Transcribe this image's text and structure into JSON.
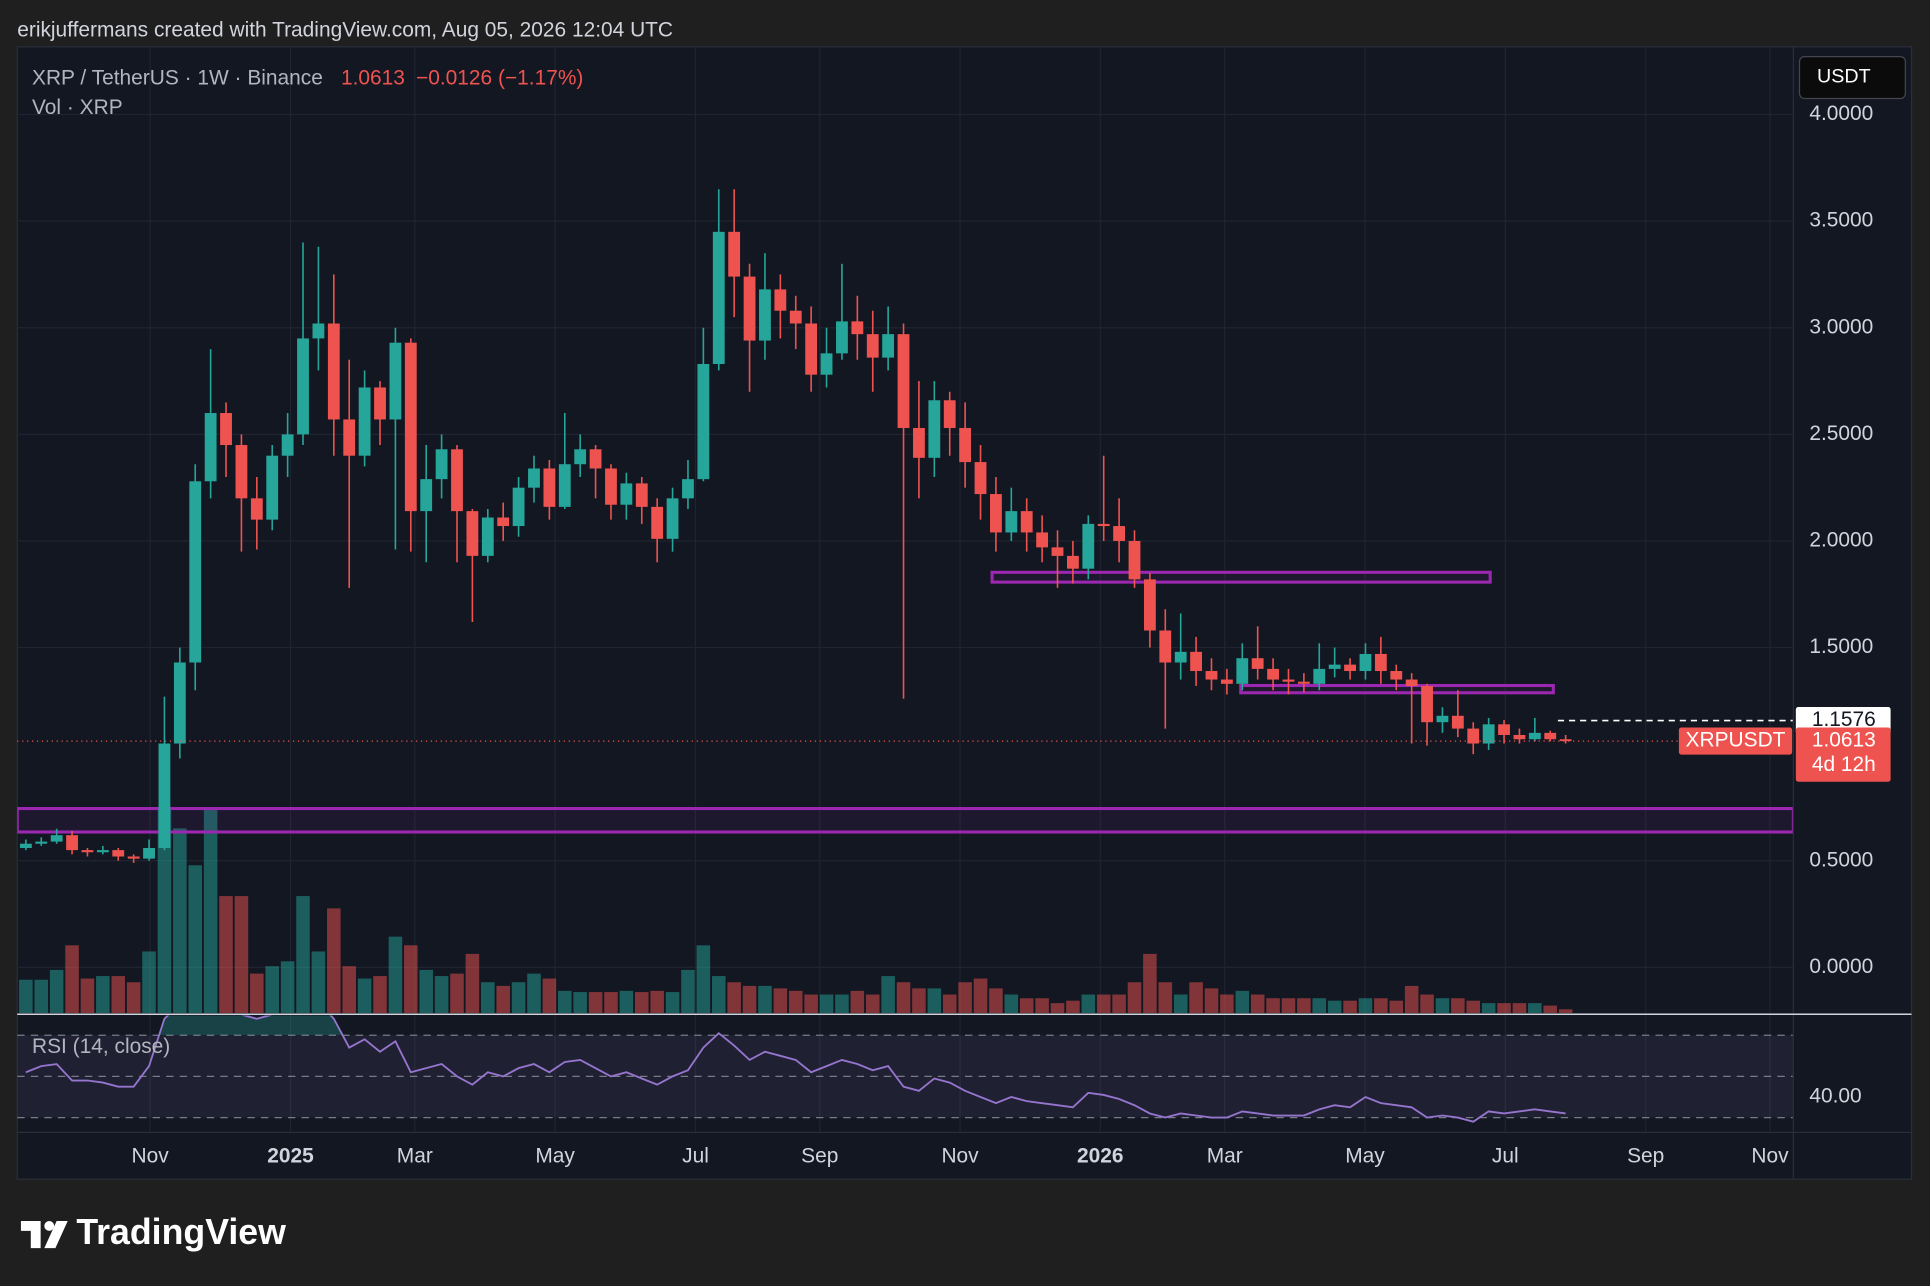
{
  "chart_data": {
    "type": "candlestick",
    "attribution": "erikjuffermans created with TradingView.com, Aug 05, 2026 12:04 UTC",
    "title": "XRP / TetherUS · 1W · Binance",
    "change_label": "−0.0126 (−1.17%)",
    "volume_label": "Vol · XRP",
    "currency": "USDT",
    "symbol": "XRPUSDT",
    "countdown": "4d 12h",
    "rsi_label": "RSI (14, close)",
    "brand": "TradingView",
    "up_color": "#26a69a",
    "down_color": "#ef5350",
    "zone_color": "#9c27b0",
    "rsi_color": "#9575cd",
    "xlim": [
      -0.56,
      114.79
    ],
    "xticks": [
      {
        "value": 8.07,
        "label": "Nov"
      },
      {
        "value": 17.19,
        "label": "2025"
      },
      {
        "value": 25.26,
        "label": "Mar"
      },
      {
        "value": 34.37,
        "label": "May"
      },
      {
        "value": 43.49,
        "label": "Jul"
      },
      {
        "value": 51.56,
        "label": "Sep"
      },
      {
        "value": 60.67,
        "label": "Nov"
      },
      {
        "value": 69.78,
        "label": "2026"
      },
      {
        "value": 77.86,
        "label": "Mar"
      },
      {
        "value": 86.97,
        "label": "May"
      },
      {
        "value": 96.08,
        "label": "Jul"
      },
      {
        "value": 105.2,
        "label": "Sep"
      },
      {
        "value": 113.27,
        "label": "Nov"
      }
    ],
    "ylim": [
      -0.214,
      4.318
    ],
    "yticks": [
      {
        "value": 0,
        "label": "0.0000"
      },
      {
        "value": 0.5,
        "label": "0.5000"
      },
      {
        "value": 1.5,
        "label": "1.5000"
      },
      {
        "value": 2,
        "label": "2.0000"
      },
      {
        "value": 2.5,
        "label": "2.5000"
      },
      {
        "value": 3,
        "label": "3.0000"
      },
      {
        "value": 3.5,
        "label": "3.5000"
      },
      {
        "value": 4,
        "label": "4.0000"
      }
    ],
    "grid": true,
    "open": [
      0.56,
      0.58,
      0.59,
      0.62,
      0.55,
      0.54,
      0.55,
      0.52,
      0.51,
      0.56,
      1.05,
      1.43,
      2.28,
      2.6,
      2.45,
      2.2,
      2.1,
      2.4,
      2.5,
      2.95,
      3.02,
      2.57,
      2.4,
      2.72,
      2.57,
      2.93,
      2.14,
      2.29,
      2.43,
      2.14,
      1.93,
      2.11,
      2.07,
      2.25,
      2.34,
      2.16,
      2.36,
      2.43,
      2.34,
      2.17,
      2.27,
      2.16,
      2.01,
      2.2,
      2.29,
      2.83,
      3.45,
      3.24,
      2.94,
      3.18,
      3.08,
      3.02,
      2.78,
      2.88,
      3.03,
      2.97,
      2.86,
      2.97,
      2.53,
      2.39,
      2.66,
      2.53,
      2.37,
      2.22,
      2.04,
      2.14,
      2.04,
      1.97,
      1.93,
      1.87,
      2.08,
      2.07,
      2.0,
      1.82,
      1.58,
      1.43,
      1.48,
      1.39,
      1.35,
      1.33,
      1.45,
      1.4,
      1.35,
      1.34,
      1.33,
      1.4,
      1.42,
      1.39,
      1.47,
      1.39,
      1.35,
      1.32,
      1.15,
      1.18,
      1.12,
      1.05,
      1.14,
      1.09,
      1.07,
      1.1,
      1.07
    ],
    "high": [
      0.6,
      0.61,
      0.65,
      0.64,
      0.56,
      0.57,
      0.56,
      0.53,
      0.6,
      1.27,
      1.5,
      2.36,
      2.9,
      2.65,
      2.5,
      2.3,
      2.45,
      2.6,
      3.4,
      3.38,
      3.25,
      2.85,
      2.8,
      2.75,
      3.0,
      2.95,
      2.45,
      2.5,
      2.45,
      2.15,
      2.15,
      2.18,
      2.3,
      2.4,
      2.38,
      2.6,
      2.5,
      2.45,
      2.36,
      2.32,
      2.3,
      2.2,
      2.25,
      2.38,
      3.0,
      3.65,
      3.65,
      3.3,
      3.35,
      3.25,
      3.15,
      3.1,
      3.0,
      3.3,
      3.15,
      3.08,
      3.1,
      3.02,
      2.75,
      2.75,
      2.7,
      2.65,
      2.45,
      2.3,
      2.25,
      2.2,
      2.12,
      2.05,
      2.0,
      2.12,
      2.4,
      2.2,
      2.05,
      1.85,
      1.68,
      1.66,
      1.55,
      1.45,
      1.4,
      1.52,
      1.6,
      1.45,
      1.4,
      1.38,
      1.52,
      1.5,
      1.45,
      1.52,
      1.55,
      1.42,
      1.38,
      1.33,
      1.22,
      1.3,
      1.15,
      1.17,
      1.16,
      1.12,
      1.17,
      1.11,
      1.09
    ],
    "low": [
      0.55,
      0.57,
      0.58,
      0.53,
      0.52,
      0.53,
      0.5,
      0.49,
      0.5,
      0.55,
      0.98,
      1.3,
      2.2,
      2.3,
      1.95,
      1.96,
      2.05,
      2.3,
      2.45,
      2.8,
      2.4,
      1.78,
      2.35,
      2.45,
      1.96,
      1.95,
      1.9,
      2.2,
      1.9,
      1.62,
      1.9,
      2.0,
      2.02,
      2.18,
      2.1,
      2.15,
      2.3,
      2.2,
      2.1,
      2.1,
      2.08,
      1.9,
      1.95,
      2.15,
      2.28,
      2.8,
      3.05,
      2.7,
      2.85,
      2.95,
      2.9,
      2.7,
      2.72,
      2.85,
      2.85,
      2.7,
      2.8,
      1.26,
      2.2,
      2.3,
      2.4,
      2.25,
      2.1,
      1.95,
      2.0,
      1.95,
      1.9,
      1.78,
      1.8,
      1.82,
      2.0,
      1.9,
      1.78,
      1.5,
      1.12,
      1.35,
      1.32,
      1.3,
      1.28,
      1.3,
      1.35,
      1.3,
      1.28,
      1.29,
      1.3,
      1.36,
      1.35,
      1.35,
      1.33,
      1.3,
      1.05,
      1.04,
      1.1,
      1.08,
      1.0,
      1.02,
      1.05,
      1.05,
      1.06,
      1.06,
      1.05
    ],
    "close": [
      0.58,
      0.59,
      0.62,
      0.55,
      0.54,
      0.55,
      0.52,
      0.51,
      0.56,
      1.05,
      1.43,
      2.28,
      2.6,
      2.45,
      2.2,
      2.1,
      2.4,
      2.5,
      2.95,
      3.02,
      2.57,
      2.4,
      2.72,
      2.57,
      2.93,
      2.14,
      2.29,
      2.43,
      2.14,
      1.93,
      2.11,
      2.07,
      2.25,
      2.34,
      2.16,
      2.36,
      2.43,
      2.34,
      2.17,
      2.27,
      2.16,
      2.01,
      2.2,
      2.29,
      2.83,
      3.45,
      3.24,
      2.94,
      3.18,
      3.08,
      3.02,
      2.78,
      2.88,
      3.03,
      2.97,
      2.86,
      2.97,
      2.53,
      2.39,
      2.66,
      2.53,
      2.37,
      2.22,
      2.04,
      2.14,
      2.04,
      1.97,
      1.93,
      1.87,
      2.08,
      2.07,
      2.0,
      1.82,
      1.58,
      1.43,
      1.48,
      1.39,
      1.35,
      1.33,
      1.45,
      1.4,
      1.35,
      1.34,
      1.33,
      1.4,
      1.42,
      1.39,
      1.47,
      1.39,
      1.35,
      1.32,
      1.15,
      1.18,
      1.12,
      1.05,
      1.14,
      1.09,
      1.07,
      1.1,
      1.07,
      1.0613
    ],
    "volume": [
      27,
      27,
      35,
      55,
      28,
      30,
      30,
      25,
      50,
      165,
      150,
      120,
      165,
      95,
      95,
      32,
      38,
      42,
      95,
      50,
      85,
      38,
      28,
      30,
      62,
      55,
      35,
      30,
      32,
      48,
      25,
      22,
      25,
      32,
      28,
      18,
      17,
      17,
      17,
      18,
      17,
      18,
      17,
      35,
      55,
      30,
      25,
      22,
      22,
      20,
      18,
      15,
      15,
      15,
      18,
      15,
      30,
      25,
      20,
      20,
      15,
      25,
      28,
      20,
      15,
      12,
      12,
      8,
      10,
      15,
      15,
      15,
      25,
      48,
      25,
      15,
      25,
      20,
      15,
      18,
      15,
      12,
      12,
      12,
      12,
      10,
      10,
      12,
      12,
      10,
      22,
      15,
      12,
      12,
      10,
      8,
      8,
      8,
      8,
      6,
      3
    ],
    "volume_lim": [
      0,
      240
    ],
    "rsi": [
      52,
      55,
      56,
      48,
      48,
      47,
      45,
      45,
      55,
      78,
      85,
      92,
      94,
      88,
      80,
      78,
      80,
      81,
      86,
      86,
      78,
      64,
      68,
      62,
      67,
      52,
      54,
      56,
      50,
      46,
      52,
      50,
      54,
      56,
      52,
      57,
      58,
      54,
      50,
      52,
      49,
      46,
      50,
      53,
      64,
      71,
      65,
      58,
      62,
      60,
      58,
      52,
      55,
      58,
      56,
      53,
      55,
      45,
      43,
      49,
      47,
      43,
      40,
      37,
      40,
      38,
      37,
      36,
      35,
      42,
      41,
      39,
      36,
      32,
      30,
      32,
      31,
      30,
      30,
      33,
      32,
      31,
      31,
      31,
      34,
      36,
      35,
      40,
      37,
      36,
      35,
      30,
      31,
      30,
      28,
      33,
      32,
      33,
      34,
      33,
      32
    ],
    "rsi_lim": [
      24,
      79.6
    ],
    "rsi_ticks": [
      {
        "value": 40,
        "label": "40.00"
      }
    ],
    "rsi_bands": [
      70,
      50,
      30
    ],
    "marker_line": 1.1576,
    "zones": [
      {
        "low": 1.807,
        "high": 1.853,
        "start": 62.75,
        "end": 95.1
      },
      {
        "low": 1.288,
        "high": 1.322,
        "start": 78.9,
        "end": 99.2
      },
      {
        "low": 0.635,
        "high": 0.745,
        "start": -0.56,
        "end": 114.79
      }
    ]
  }
}
